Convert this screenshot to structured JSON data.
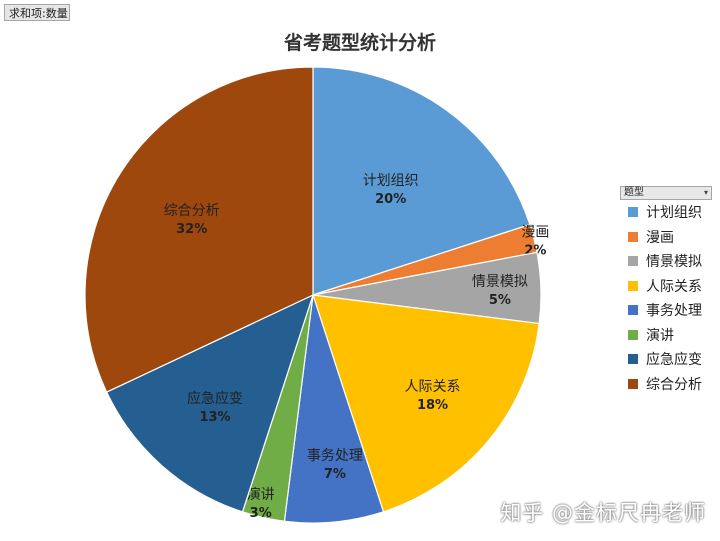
{
  "field_button": "求和项:数量",
  "chart_data": {
    "type": "pie",
    "title": "省考题型统计分析",
    "legend_title": "题型",
    "legend_position": "right",
    "slices": [
      {
        "label": "计划组织",
        "value": 20,
        "percent_label": "20%",
        "color": "#5b9bd5"
      },
      {
        "label": "漫画",
        "value": 2,
        "percent_label": "2%",
        "color": "#ed7d31"
      },
      {
        "label": "情景模拟",
        "value": 5,
        "percent_label": "5%",
        "color": "#a5a5a5"
      },
      {
        "label": "人际关系",
        "value": 18,
        "percent_label": "18%",
        "color": "#ffc000"
      },
      {
        "label": "事务处理",
        "value": 7,
        "percent_label": "7%",
        "color": "#4472c4"
      },
      {
        "label": "演讲",
        "value": 3,
        "percent_label": "3%",
        "color": "#70ad47"
      },
      {
        "label": "应急应变",
        "value": 13,
        "percent_label": "13%",
        "color": "#255e91"
      },
      {
        "label": "综合分析",
        "value": 32,
        "percent_label": "32%",
        "color": "#9e480e"
      }
    ]
  },
  "watermark": "知乎 @金标尺冉老师"
}
